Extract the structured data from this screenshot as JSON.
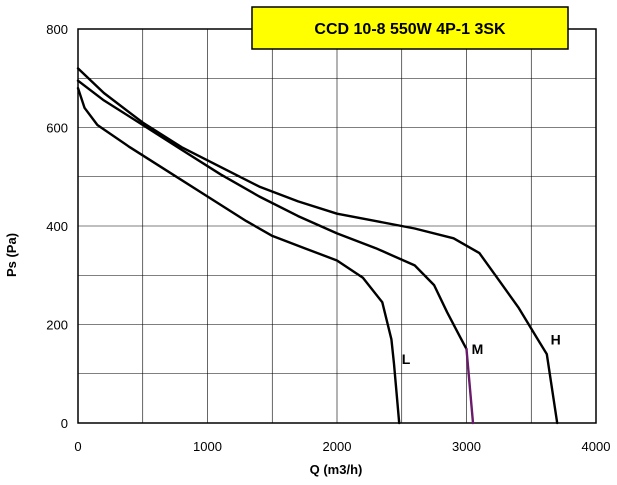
{
  "chart_data": {
    "type": "line",
    "title": "CCD 10-8 550W 4P-1 3SK",
    "xlabel": "Q (m3/h)",
    "ylabel": "Ps (Pa)",
    "xlim": [
      0,
      4000
    ],
    "ylim": [
      0,
      800
    ],
    "x_ticks": [
      "0",
      "1000",
      "2000",
      "3000",
      "4000"
    ],
    "y_ticks": [
      "0",
      "200",
      "400",
      "600",
      "800"
    ],
    "grid": true,
    "grid_x_step": 500,
    "grid_y_step": 100,
    "series": [
      {
        "name": "L",
        "color": "#000000",
        "x": [
          0,
          50,
          150,
          400,
          700,
          1000,
          1300,
          1500,
          1750,
          2000,
          2200,
          2350,
          2420,
          2440,
          2460,
          2480
        ],
        "y": [
          680,
          640,
          605,
          560,
          510,
          460,
          410,
          380,
          355,
          330,
          295,
          245,
          170,
          120,
          60,
          0
        ]
      },
      {
        "name": "M",
        "color": "#000000",
        "x": [
          0,
          200,
          500,
          800,
          1100,
          1400,
          1700,
          2000,
          2300,
          2600,
          2750,
          2850,
          2950,
          3000
        ],
        "y": [
          695,
          655,
          605,
          555,
          505,
          460,
          420,
          385,
          355,
          320,
          280,
          225,
          175,
          150
        ]
      },
      {
        "name": "M-cutoff",
        "color": "#6a1b6a",
        "x": [
          3000,
          3050
        ],
        "y": [
          150,
          0
        ]
      },
      {
        "name": "H",
        "color": "#000000",
        "x": [
          0,
          200,
          500,
          800,
          1100,
          1400,
          1700,
          2000,
          2300,
          2600,
          2900,
          3100,
          3250,
          3400,
          3550,
          3620,
          3700
        ],
        "y": [
          720,
          670,
          610,
          560,
          520,
          480,
          450,
          425,
          410,
          395,
          375,
          345,
          290,
          235,
          170,
          140,
          0
        ]
      }
    ],
    "curve_labels": [
      {
        "text": "L",
        "x": 2500,
        "y": 130
      },
      {
        "text": "M",
        "x": 3040,
        "y": 150
      },
      {
        "text": "H",
        "x": 3650,
        "y": 170
      }
    ]
  }
}
